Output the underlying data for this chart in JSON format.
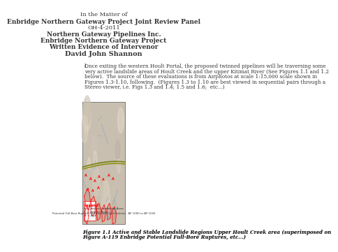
{
  "bg_color": "#ffffff",
  "header_lines": [
    "In the Matter of",
    "Enbridge Northern Gateway Project Joint Review Panel",
    "OH-4-2011",
    "Northern Gateway Pipelines Inc.",
    "Enbridge Northern Gateway Project",
    "Written Evidence of Intervenor",
    "David John Shannon"
  ],
  "body_text": "1. Once exiting the western Hoult Portal, the proposed twinned pipelines will be traversing some\nvery active landslide areas of Hoult Creek and the upper Kitimat River (See Figures 1.1 and 1.2\nbelow).  The source of these evaluations is from Airphotos at scale 1:15,000 scale shown in\nFigures 1.3-1.10, following.  (Figures 1.3 to 1.10 are best viewed in sequential pairs through a\nStereo viewer, i.e. Figs 1.3 and 1.4; 1.5 and 1.6;  etc...)",
  "caption_line1": "Figure 1.1 Active and Stable Landslide Regions Upper Hoult Creek area (superimposed on",
  "caption_line2": "Figure A-119 Enbridge Potential Full-Bore Ruptures, etc...)",
  "map_placeholder_color": "#d0c8b8",
  "map_border_color": "#666666"
}
